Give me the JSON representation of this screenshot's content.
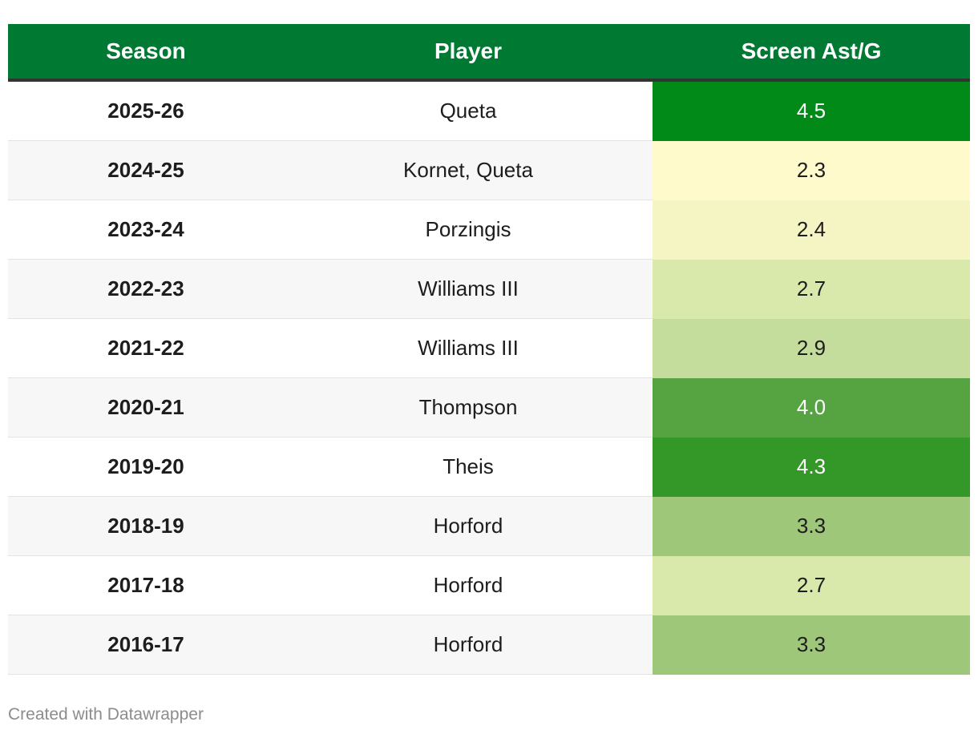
{
  "chart_data": {
    "type": "table",
    "columns": [
      "Season",
      "Player",
      "Screen Ast/G"
    ],
    "rows": [
      {
        "season": "2025-26",
        "player": "Queta",
        "value": "4.5",
        "bg": "#018a17",
        "fg": "#ffffff"
      },
      {
        "season": "2024-25",
        "player": "Kornet, Queta",
        "value": "2.3",
        "bg": "#fefacb",
        "fg": "#1d1d1d"
      },
      {
        "season": "2023-24",
        "player": "Porzingis",
        "value": "2.4",
        "bg": "#f5f4c3",
        "fg": "#1d1d1d"
      },
      {
        "season": "2022-23",
        "player": "Williams III",
        "value": "2.7",
        "bg": "#d9e8ab",
        "fg": "#1d1d1d"
      },
      {
        "season": "2021-22",
        "player": "Williams III",
        "value": "2.9",
        "bg": "#c5dd9c",
        "fg": "#1d1d1d"
      },
      {
        "season": "2020-21",
        "player": "Thompson",
        "value": "4.0",
        "bg": "#56a441",
        "fg": "#ffffff"
      },
      {
        "season": "2019-20",
        "player": "Theis",
        "value": "4.3",
        "bg": "#349829",
        "fg": "#ffffff"
      },
      {
        "season": "2018-19",
        "player": "Horford",
        "value": "3.3",
        "bg": "#9ec77a",
        "fg": "#1d1d1d"
      },
      {
        "season": "2017-18",
        "player": "Horford",
        "value": "2.7",
        "bg": "#d9e8ab",
        "fg": "#1d1d1d"
      },
      {
        "season": "2016-17",
        "player": "Horford",
        "value": "3.3",
        "bg": "#9ec77a",
        "fg": "#1d1d1d"
      }
    ],
    "header_color": "#007a33"
  },
  "footer": {
    "credit": "Created with Datawrapper"
  }
}
